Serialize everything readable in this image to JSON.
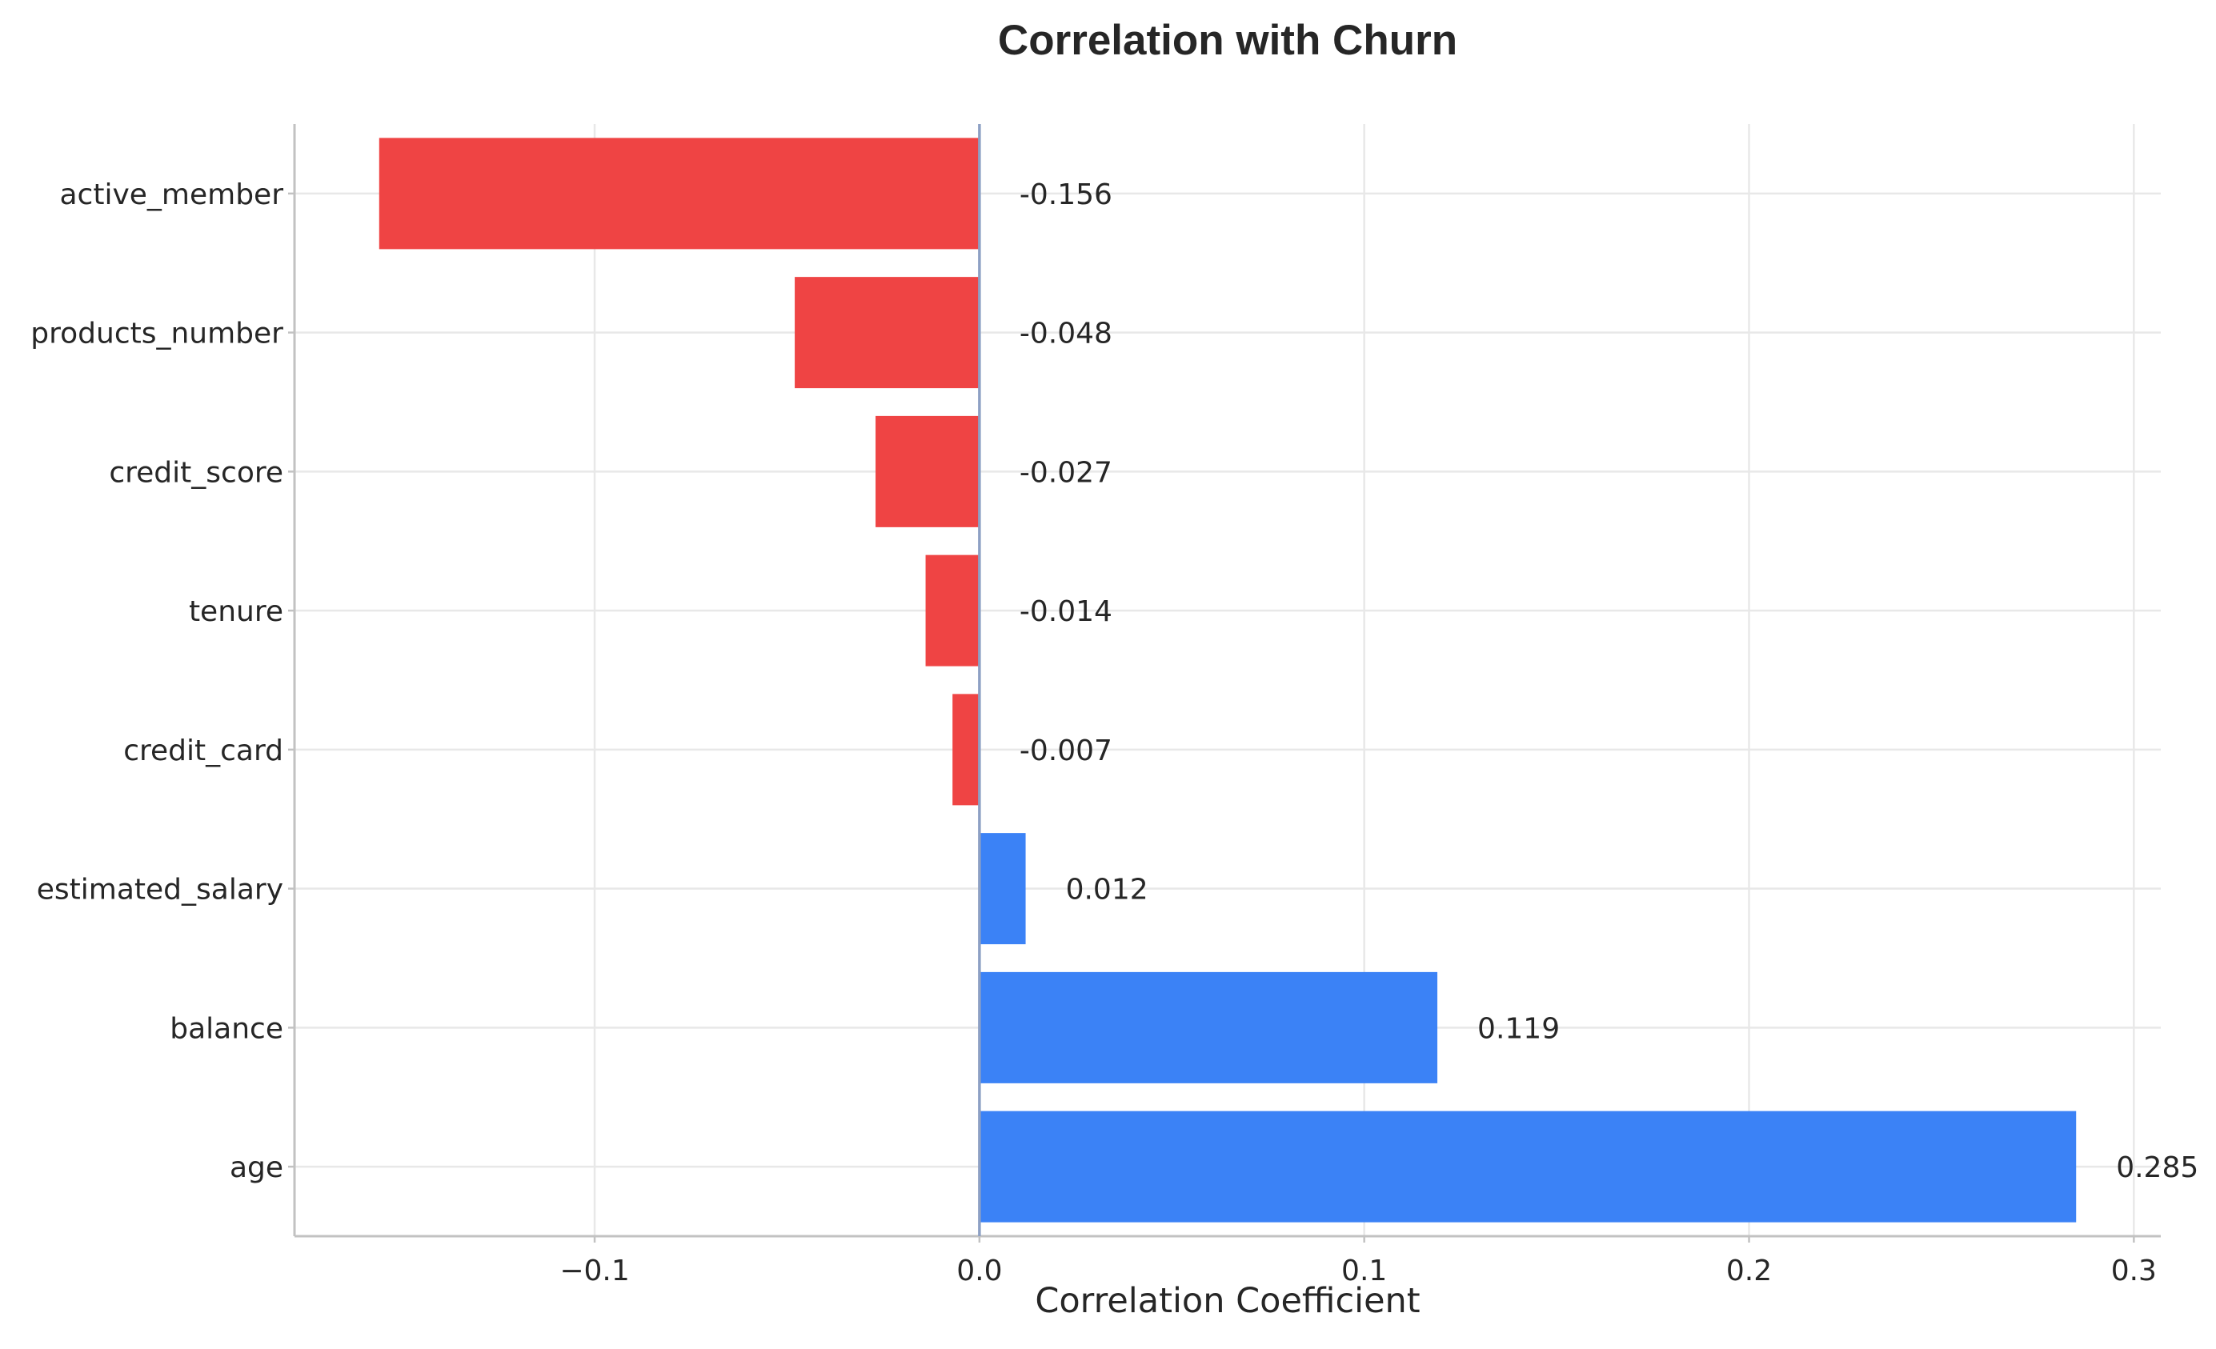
{
  "chart_data": {
    "type": "bar",
    "orientation": "horizontal",
    "title": "Correlation with Churn",
    "xlabel": "Correlation Coefficient",
    "ylabel": "",
    "xlim": [
      -0.178,
      0.307
    ],
    "x_ticks": [
      {
        "value": -0.1,
        "label": "−0.1"
      },
      {
        "value": 0.0,
        "label": "0.0"
      },
      {
        "value": 0.1,
        "label": "0.1"
      },
      {
        "value": 0.2,
        "label": "0.2"
      },
      {
        "value": 0.3,
        "label": "0.3"
      }
    ],
    "grid": true,
    "categories": [
      "active_member",
      "products_number",
      "credit_score",
      "tenure",
      "credit_card",
      "estimated_salary",
      "balance",
      "age"
    ],
    "values": [
      -0.156,
      -0.048,
      -0.027,
      -0.014,
      -0.007,
      0.012,
      0.119,
      0.285
    ],
    "value_labels": [
      "-0.156",
      "-0.048",
      "-0.027",
      "-0.014",
      "-0.007",
      "0.012",
      "0.119",
      "0.285"
    ],
    "colors": {
      "negative": "#ef4444",
      "positive": "#3b82f6",
      "zero_line": "#8da0c4",
      "grid": "#e8e8e8",
      "spine": "#c2c2c2",
      "text": "#262626"
    }
  }
}
